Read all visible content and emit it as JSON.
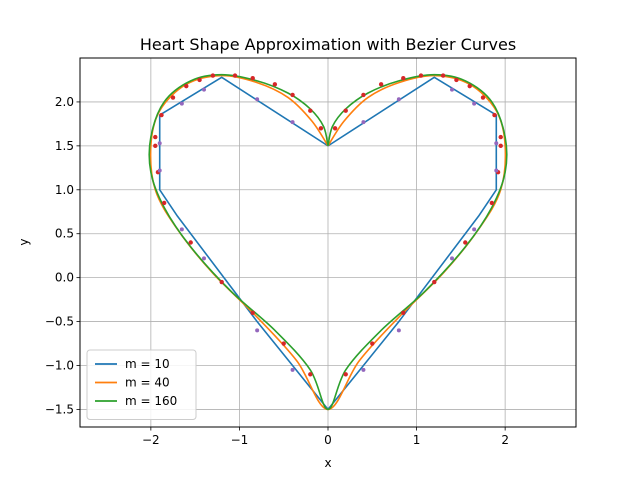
{
  "chart_data": {
    "type": "line",
    "title": "Heart Shape Approximation with Bezier Curves",
    "xlabel": "x",
    "ylabel": "y",
    "xlim": [
      -2.8,
      2.8
    ],
    "ylim": [
      -1.7,
      2.5
    ],
    "x_ticks": [
      -2,
      -1,
      0,
      1,
      2
    ],
    "x_tick_labels": [
      "−2",
      "−1",
      "0",
      "1",
      "2"
    ],
    "y_ticks": [
      -1.5,
      -1.0,
      -0.5,
      0.0,
      0.5,
      1.0,
      1.5,
      2.0
    ],
    "y_tick_labels": [
      "−1.5",
      "−1.0",
      "−0.5",
      "0.0",
      "0.5",
      "1.0",
      "1.5",
      "2.0"
    ],
    "grid": true,
    "legend_position": "lower-left",
    "series": [
      {
        "name": "m = 10",
        "color": "#1f77b4",
        "points": [
          [
            0,
            1.5
          ],
          [
            -1.2,
            2.28
          ],
          [
            -1.9,
            1.85
          ],
          [
            -1.9,
            1.0
          ],
          [
            -1.7,
            0.7
          ],
          [
            -0.8,
            -0.5
          ],
          [
            0,
            -1.5
          ],
          [
            0.8,
            -0.5
          ],
          [
            1.7,
            0.7
          ],
          [
            1.9,
            1.0
          ],
          [
            1.9,
            1.85
          ],
          [
            1.2,
            2.28
          ],
          [
            0,
            1.5
          ]
        ]
      },
      {
        "name": "m = 40",
        "color": "#ff7f0e",
        "points": [
          [
            0,
            1.5
          ],
          [
            -0.18,
            1.78
          ],
          [
            -0.45,
            2.05
          ],
          [
            -0.8,
            2.22
          ],
          [
            -1.2,
            2.3
          ],
          [
            -1.6,
            2.2
          ],
          [
            -1.9,
            1.9
          ],
          [
            -2.0,
            1.5
          ],
          [
            -1.95,
            1.0
          ],
          [
            -1.7,
            0.55
          ],
          [
            -1.3,
            0.05
          ],
          [
            -0.8,
            -0.45
          ],
          [
            -0.35,
            -0.95
          ],
          [
            0,
            -1.5
          ],
          [
            0.35,
            -0.95
          ],
          [
            0.8,
            -0.45
          ],
          [
            1.3,
            0.05
          ],
          [
            1.7,
            0.55
          ],
          [
            1.95,
            1.0
          ],
          [
            2.0,
            1.5
          ],
          [
            1.9,
            1.9
          ],
          [
            1.6,
            2.2
          ],
          [
            1.2,
            2.3
          ],
          [
            0.8,
            2.22
          ],
          [
            0.45,
            2.05
          ],
          [
            0.18,
            1.78
          ],
          [
            0,
            1.5
          ]
        ]
      },
      {
        "name": "m = 160",
        "color": "#2ca02c",
        "points": [
          [
            0,
            1.5
          ],
          [
            -0.05,
            1.72
          ],
          [
            -0.2,
            1.92
          ],
          [
            -0.45,
            2.1
          ],
          [
            -0.8,
            2.24
          ],
          [
            -1.2,
            2.31
          ],
          [
            -1.55,
            2.24
          ],
          [
            -1.85,
            2.0
          ],
          [
            -2.0,
            1.6
          ],
          [
            -2.0,
            1.2
          ],
          [
            -1.85,
            0.8
          ],
          [
            -1.55,
            0.35
          ],
          [
            -1.1,
            -0.15
          ],
          [
            -0.6,
            -0.6
          ],
          [
            -0.2,
            -1.05
          ],
          [
            0,
            -1.5
          ],
          [
            0.2,
            -1.05
          ],
          [
            0.6,
            -0.6
          ],
          [
            1.1,
            -0.15
          ],
          [
            1.55,
            0.35
          ],
          [
            1.85,
            0.8
          ],
          [
            2.0,
            1.2
          ],
          [
            2.0,
            1.6
          ],
          [
            1.85,
            2.0
          ],
          [
            1.55,
            2.24
          ],
          [
            1.2,
            2.31
          ],
          [
            0.8,
            2.24
          ],
          [
            0.45,
            2.1
          ],
          [
            0.2,
            1.92
          ],
          [
            0.05,
            1.72
          ],
          [
            0,
            1.5
          ]
        ]
      }
    ],
    "control_points": {
      "color": "#d62728",
      "points": [
        [
          -1.95,
          1.5
        ],
        [
          -1.95,
          1.6
        ],
        [
          -1.88,
          1.85
        ],
        [
          -1.75,
          2.05
        ],
        [
          -1.6,
          2.18
        ],
        [
          -1.45,
          2.25
        ],
        [
          -1.3,
          2.3
        ],
        [
          -1.05,
          2.3
        ],
        [
          -0.85,
          2.27
        ],
        [
          -0.6,
          2.2
        ],
        [
          -0.4,
          2.08
        ],
        [
          -0.2,
          1.9
        ],
        [
          -0.08,
          1.7
        ],
        [
          1.95,
          1.5
        ],
        [
          1.95,
          1.6
        ],
        [
          1.88,
          1.85
        ],
        [
          1.75,
          2.05
        ],
        [
          1.6,
          2.18
        ],
        [
          1.45,
          2.25
        ],
        [
          1.3,
          2.3
        ],
        [
          1.05,
          2.3
        ],
        [
          0.85,
          2.27
        ],
        [
          0.6,
          2.2
        ],
        [
          0.4,
          2.08
        ],
        [
          0.2,
          1.9
        ],
        [
          0.08,
          1.7
        ],
        [
          -1.92,
          1.2
        ],
        [
          -1.85,
          0.85
        ],
        [
          -1.55,
          0.4
        ],
        [
          -1.2,
          -0.05
        ],
        [
          -0.85,
          -0.4
        ],
        [
          -0.5,
          -0.75
        ],
        [
          -0.2,
          -1.1
        ],
        [
          1.92,
          1.2
        ],
        [
          1.85,
          0.85
        ],
        [
          1.55,
          0.4
        ],
        [
          1.2,
          -0.05
        ],
        [
          0.85,
          -0.4
        ],
        [
          0.5,
          -0.75
        ],
        [
          0.2,
          -1.1
        ]
      ]
    },
    "sample_points": {
      "color": "#9467bd",
      "points": [
        [
          -0.8,
          2.03
        ],
        [
          -0.4,
          1.77
        ],
        [
          -1.65,
          1.98
        ],
        [
          -1.4,
          2.14
        ],
        [
          -1.9,
          1.53
        ],
        [
          -1.9,
          1.22
        ],
        [
          -1.65,
          0.55
        ],
        [
          -1.4,
          0.22
        ],
        [
          -0.8,
          -0.6
        ],
        [
          -0.4,
          -1.05
        ],
        [
          0.8,
          2.03
        ],
        [
          0.4,
          1.77
        ],
        [
          1.65,
          1.98
        ],
        [
          1.4,
          2.14
        ],
        [
          1.9,
          1.53
        ],
        [
          1.9,
          1.22
        ],
        [
          1.65,
          0.55
        ],
        [
          1.4,
          0.22
        ],
        [
          0.8,
          -0.6
        ],
        [
          0.4,
          -1.05
        ]
      ]
    }
  }
}
